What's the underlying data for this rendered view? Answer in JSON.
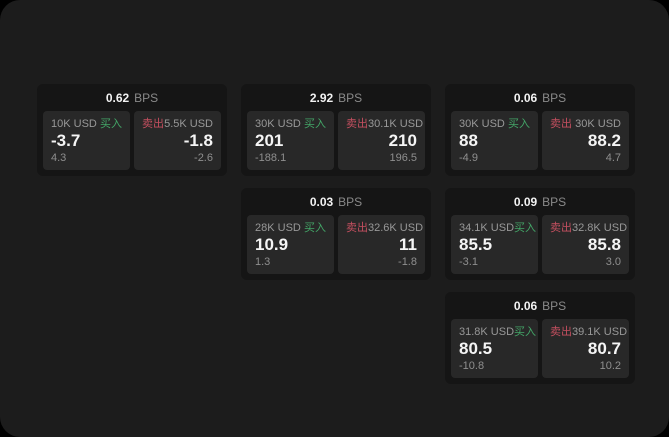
{
  "colors": {
    "outside_bg": "#000000",
    "page_bg": "#1c1c1c",
    "card_bg": "#151515",
    "panel_bg": "#282828",
    "text_primary": "#f5f5f5",
    "text_secondary": "#8f8f8f",
    "buy_green": "#43a567",
    "sell_red": "#c44f5f"
  },
  "labels": {
    "bps": "BPS",
    "buy": "买入",
    "sell": "卖出"
  },
  "cards": [
    {
      "bps": "0.62",
      "buy": {
        "amount": "10K USD",
        "price": "-3.7",
        "delta": "4.3"
      },
      "sell": {
        "amount": "5.5K USD",
        "price": "-1.8",
        "delta": "-2.6"
      }
    },
    {
      "bps": "2.92",
      "buy": {
        "amount": "30K USD",
        "price": "201",
        "delta": "-188.1"
      },
      "sell": {
        "amount": "30.1K USD",
        "price": "210",
        "delta": "196.5"
      }
    },
    {
      "bps": "0.06",
      "buy": {
        "amount": "30K USD",
        "price": "88",
        "delta": "-4.9"
      },
      "sell": {
        "amount": "30K USD",
        "price": "88.2",
        "delta": "4.7"
      }
    },
    {
      "bps": "0.03",
      "buy": {
        "amount": "28K USD",
        "price": "10.9",
        "delta": "1.3"
      },
      "sell": {
        "amount": "32.6K USD",
        "price": "11",
        "delta": "-1.8"
      }
    },
    {
      "bps": "0.09",
      "buy": {
        "amount": "34.1K USD",
        "price": "85.5",
        "delta": "-3.1"
      },
      "sell": {
        "amount": "32.8K USD",
        "price": "85.8",
        "delta": "3.0"
      }
    },
    {
      "bps": "0.06",
      "buy": {
        "amount": "31.8K USD",
        "price": "80.5",
        "delta": "-10.8"
      },
      "sell": {
        "amount": "39.1K USD",
        "price": "80.7",
        "delta": "10.2"
      }
    }
  ]
}
